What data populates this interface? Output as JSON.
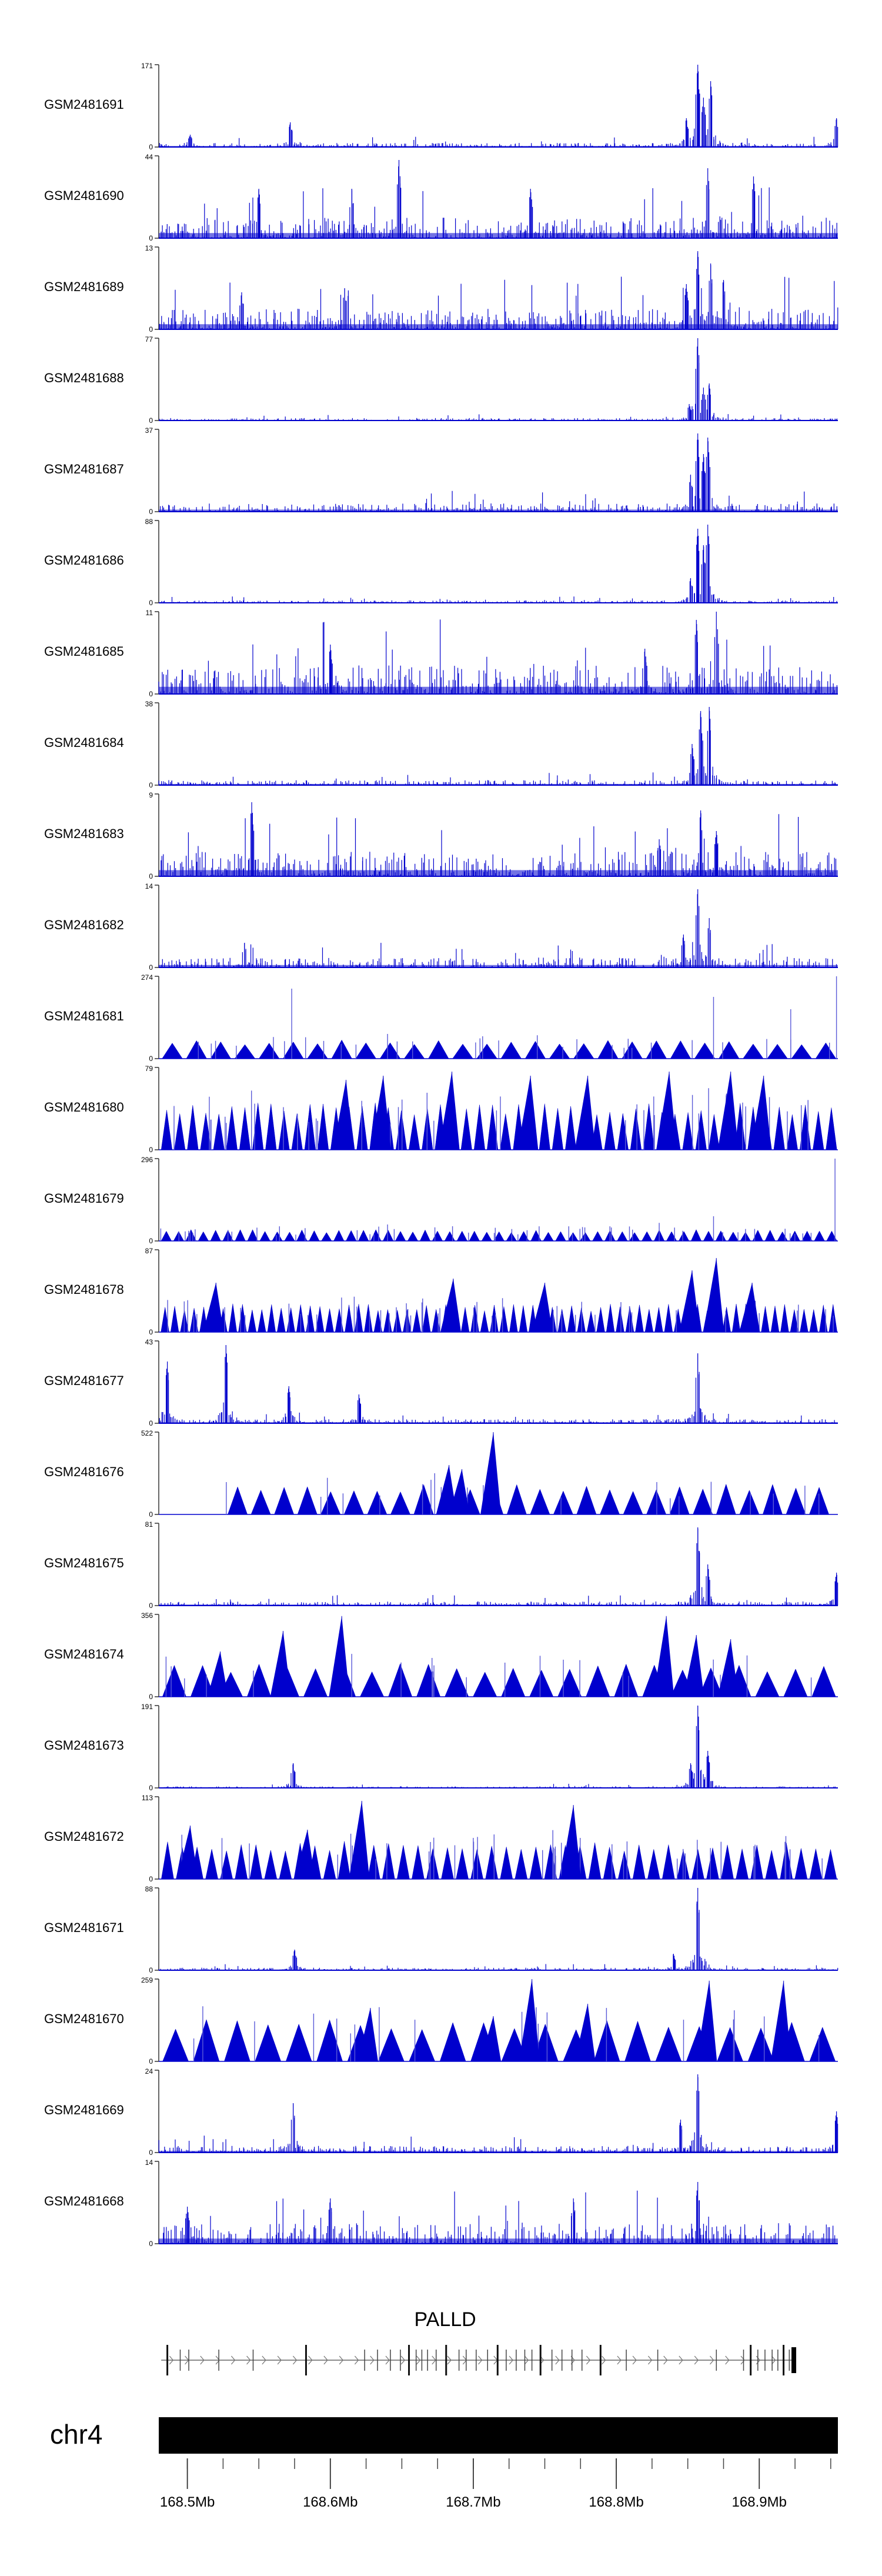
{
  "chart_data": {
    "type": "area",
    "title": "",
    "xlabel": "",
    "ylabel": "",
    "chromosome": "chr4",
    "xlim": [
      168.48,
      168.955
    ],
    "x_ticks": [
      168.5,
      168.6,
      168.7,
      168.8,
      168.9
    ],
    "x_tick_labels": [
      "168.5Mb",
      "168.6Mb",
      "168.7Mb",
      "168.8Mb",
      "168.9Mb"
    ],
    "gene": {
      "name": "PALLD",
      "strand": "+",
      "start": 168.485,
      "end": 168.925,
      "exons": [
        168.486,
        168.495,
        168.501,
        168.522,
        168.546,
        168.583,
        168.624,
        168.633,
        168.642,
        168.649,
        168.655,
        168.66,
        168.664,
        168.668,
        168.674,
        168.681,
        168.69,
        168.695,
        168.702,
        168.71,
        168.717,
        168.723,
        168.73,
        168.736,
        168.741,
        168.747,
        168.755,
        168.762,
        168.769,
        168.776,
        168.789,
        168.807,
        168.829,
        168.87,
        168.889,
        168.894,
        168.899,
        168.904,
        168.909,
        168.913,
        168.917,
        168.921,
        168.924
      ]
    },
    "series": [
      {
        "name": "GSM2481691",
        "ymax": 171,
        "style": "signal",
        "background": 0.05,
        "peaks": [
          [
            168.857,
            1.0
          ],
          [
            168.866,
            0.8
          ],
          [
            168.861,
            0.6
          ],
          [
            168.849,
            0.35
          ],
          [
            168.954,
            0.35
          ],
          [
            168.572,
            0.3
          ],
          [
            168.502,
            0.15
          ]
        ]
      },
      {
        "name": "GSM2481690",
        "ymax": 44,
        "style": "signal",
        "background": 0.25,
        "peaks": [
          [
            168.648,
            0.95
          ],
          [
            168.896,
            0.75
          ],
          [
            168.55,
            0.6
          ],
          [
            168.74,
            0.6
          ],
          [
            168.615,
            0.6
          ],
          [
            168.864,
            0.85
          ]
        ]
      },
      {
        "name": "GSM2481689",
        "ymax": 13,
        "style": "signal",
        "background": 0.25,
        "peaks": [
          [
            168.857,
            0.95
          ],
          [
            168.866,
            0.8
          ],
          [
            168.875,
            0.6
          ],
          [
            168.849,
            0.55
          ],
          [
            168.61,
            0.5
          ],
          [
            168.538,
            0.45
          ]
        ]
      },
      {
        "name": "GSM2481688",
        "ymax": 77,
        "style": "signal",
        "background": 0.03,
        "peaks": [
          [
            168.857,
            1.0
          ],
          [
            168.865,
            0.45
          ],
          [
            168.861,
            0.4
          ],
          [
            168.851,
            0.2
          ]
        ]
      },
      {
        "name": "GSM2481687",
        "ymax": 37,
        "style": "signal",
        "background": 0.1,
        "peaks": [
          [
            168.857,
            0.95
          ],
          [
            168.864,
            0.9
          ],
          [
            168.861,
            0.7
          ],
          [
            168.852,
            0.45
          ]
        ]
      },
      {
        "name": "GSM2481686",
        "ymax": 88,
        "style": "signal",
        "background": 0.03,
        "peaks": [
          [
            168.857,
            0.9
          ],
          [
            168.864,
            0.95
          ],
          [
            168.861,
            0.7
          ],
          [
            168.852,
            0.3
          ]
        ]
      },
      {
        "name": "GSM2481685",
        "ymax": 11,
        "style": "signal",
        "background": 0.35,
        "peaks": [
          [
            168.87,
            1.0
          ],
          [
            168.856,
            0.9
          ],
          [
            168.6,
            0.6
          ],
          [
            168.82,
            0.55
          ]
        ]
      },
      {
        "name": "GSM2481684",
        "ymax": 38,
        "style": "signal",
        "background": 0.06,
        "peaks": [
          [
            168.859,
            0.9
          ],
          [
            168.865,
            0.95
          ],
          [
            168.853,
            0.5
          ]
        ]
      },
      {
        "name": "GSM2481683",
        "ymax": 9,
        "style": "signal",
        "background": 0.3,
        "peaks": [
          [
            168.545,
            0.9
          ],
          [
            168.859,
            0.8
          ],
          [
            168.87,
            0.55
          ],
          [
            168.83,
            0.45
          ]
        ]
      },
      {
        "name": "GSM2481682",
        "ymax": 14,
        "style": "signal",
        "background": 0.12,
        "peaks": [
          [
            168.857,
            0.95
          ],
          [
            168.865,
            0.6
          ],
          [
            168.847,
            0.4
          ],
          [
            168.54,
            0.3
          ]
        ]
      },
      {
        "name": "GSM2481681",
        "ymax": 274,
        "style": "triangles",
        "count": 28,
        "tri_height": 0.2,
        "spikes": [
          [
            168.573,
            0.85
          ],
          [
            168.868,
            0.75
          ],
          [
            168.954,
            1.0
          ],
          [
            168.922,
            0.6
          ],
          [
            168.64,
            0.3
          ]
        ]
      },
      {
        "name": "GSM2481680",
        "ymax": 79,
        "style": "triangles",
        "count": 52,
        "tri_height": 0.5,
        "spikes": [
          [
            168.685,
            0.95
          ],
          [
            168.837,
            0.95
          ],
          [
            168.88,
            0.95
          ],
          [
            168.903,
            0.9
          ],
          [
            168.611,
            0.85
          ],
          [
            168.637,
            0.9
          ],
          [
            168.78,
            0.9
          ],
          [
            168.74,
            0.9
          ]
        ]
      },
      {
        "name": "GSM2481679",
        "ymax": 296,
        "style": "triangles",
        "count": 55,
        "tri_height": 0.12,
        "spikes": [
          [
            168.953,
            1.0
          ],
          [
            168.868,
            0.3
          ],
          [
            168.64,
            0.2
          ],
          [
            168.83,
            0.22
          ]
        ]
      },
      {
        "name": "GSM2481678",
        "ymax": 87,
        "style": "triangles",
        "count": 70,
        "tri_height": 0.3,
        "spikes": [
          [
            168.52,
            0.6
          ],
          [
            168.686,
            0.65
          ],
          [
            168.75,
            0.6
          ],
          [
            168.853,
            0.75
          ],
          [
            168.87,
            0.9
          ],
          [
            168.895,
            0.6
          ]
        ]
      },
      {
        "name": "GSM2481677",
        "ymax": 43,
        "style": "signal",
        "background": 0.05,
        "peaks": [
          [
            168.857,
            0.85
          ],
          [
            168.527,
            0.95
          ],
          [
            168.486,
            0.75
          ],
          [
            168.571,
            0.45
          ],
          [
            168.62,
            0.35
          ]
        ]
      },
      {
        "name": "GSM2481676",
        "ymax": 522,
        "style": "triangles",
        "count": 26,
        "xrange": [
          168.527,
          168.95
        ],
        "tri_height": 0.32,
        "spikes": [
          [
            168.714,
            1.0
          ],
          [
            168.683,
            0.6
          ],
          [
            168.692,
            0.55
          ],
          [
            168.673,
            0.5
          ]
        ]
      },
      {
        "name": "GSM2481675",
        "ymax": 81,
        "style": "signal",
        "background": 0.05,
        "peaks": [
          [
            168.857,
            0.95
          ],
          [
            168.864,
            0.5
          ],
          [
            168.954,
            0.4
          ]
        ]
      },
      {
        "name": "GSM2481674",
        "ymax": 356,
        "style": "triangles",
        "count": 24,
        "tri_height": 0.35,
        "spikes": [
          [
            168.608,
            0.98
          ],
          [
            168.567,
            0.8
          ],
          [
            168.835,
            0.98
          ],
          [
            168.856,
            0.75
          ],
          [
            168.88,
            0.7
          ],
          [
            168.523,
            0.55
          ]
        ]
      },
      {
        "name": "GSM2481673",
        "ymax": 191,
        "style": "signal",
        "background": 0.02,
        "peaks": [
          [
            168.857,
            1.0
          ],
          [
            168.864,
            0.45
          ],
          [
            168.852,
            0.3
          ],
          [
            168.574,
            0.3
          ]
        ]
      },
      {
        "name": "GSM2481672",
        "ymax": 113,
        "style": "triangles",
        "count": 46,
        "tri_height": 0.4,
        "spikes": [
          [
            168.622,
            0.95
          ],
          [
            168.77,
            0.9
          ],
          [
            168.584,
            0.6
          ],
          [
            168.67,
            0.45
          ],
          [
            168.7,
            0.5
          ],
          [
            168.502,
            0.65
          ]
        ]
      },
      {
        "name": "GSM2481671",
        "ymax": 88,
        "style": "signal",
        "background": 0.03,
        "peaks": [
          [
            168.857,
            1.0
          ],
          [
            168.575,
            0.25
          ],
          [
            168.84,
            0.2
          ]
        ]
      },
      {
        "name": "GSM2481670",
        "ymax": 259,
        "style": "triangles",
        "count": 22,
        "tri_height": 0.45,
        "spikes": [
          [
            168.741,
            1.0
          ],
          [
            168.865,
            0.98
          ],
          [
            168.917,
            0.98
          ],
          [
            168.628,
            0.65
          ],
          [
            168.714,
            0.55
          ],
          [
            168.78,
            0.7
          ]
        ]
      },
      {
        "name": "GSM2481669",
        "ymax": 24,
        "style": "signal",
        "background": 0.08,
        "peaks": [
          [
            168.857,
            0.95
          ],
          [
            168.574,
            0.6
          ],
          [
            168.954,
            0.5
          ],
          [
            168.845,
            0.4
          ]
        ]
      },
      {
        "name": "GSM2481668",
        "ymax": 14,
        "style": "signal",
        "background": 0.25,
        "peaks": [
          [
            168.857,
            0.75
          ],
          [
            168.6,
            0.55
          ],
          [
            168.77,
            0.55
          ],
          [
            168.5,
            0.45
          ]
        ]
      }
    ]
  }
}
